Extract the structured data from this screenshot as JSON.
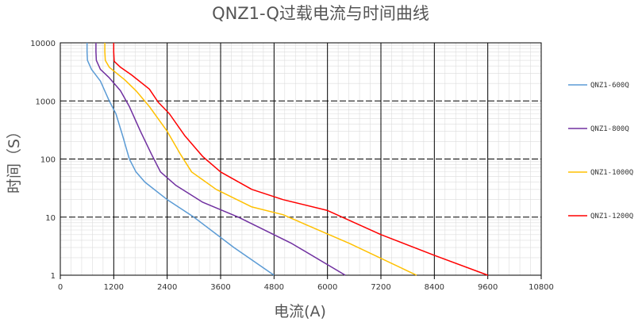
{
  "chart_data": {
    "type": "line",
    "title": "QNZ1-Q过载电流与时间曲线",
    "xlabel": "电流(A)",
    "ylabel": "时间（S）",
    "xlim": [
      0,
      10800
    ],
    "ylim": [
      1,
      10000
    ],
    "yscale": "log",
    "x_ticks": [
      "0",
      "1200",
      "2400",
      "3600",
      "4800",
      "6000",
      "7200",
      "8400",
      "9600",
      "10800"
    ],
    "y_ticks": [
      "1",
      "10",
      "100",
      "1000",
      "10000"
    ],
    "grid": true,
    "legend_position": "right",
    "series": [
      {
        "name": "QNZ1-600Q",
        "color": "#5b9bd5",
        "points": [
          [
            600,
            10000
          ],
          [
            600,
            7000
          ],
          [
            610,
            5000
          ],
          [
            700,
            3500
          ],
          [
            900,
            2200
          ],
          [
            1100,
            1000
          ],
          [
            1250,
            600
          ],
          [
            1400,
            250
          ],
          [
            1550,
            100
          ],
          [
            1700,
            60
          ],
          [
            1900,
            40
          ],
          [
            2400,
            20
          ],
          [
            3000,
            10
          ],
          [
            3900,
            3
          ],
          [
            4800,
            1
          ]
        ]
      },
      {
        "name": "QNZ1-800Q",
        "color": "#7030a0",
        "points": [
          [
            800,
            10000
          ],
          [
            800,
            7000
          ],
          [
            810,
            5000
          ],
          [
            900,
            3500
          ],
          [
            1100,
            2500
          ],
          [
            1350,
            1500
          ],
          [
            1550,
            800
          ],
          [
            1800,
            300
          ],
          [
            2050,
            120
          ],
          [
            2250,
            60
          ],
          [
            2600,
            35
          ],
          [
            3200,
            18
          ],
          [
            4000,
            10
          ],
          [
            5200,
            3.5
          ],
          [
            6400,
            1
          ]
        ]
      },
      {
        "name": "QNZ1-1000Q",
        "color": "#ffc000",
        "points": [
          [
            1000,
            10000
          ],
          [
            1000,
            7000
          ],
          [
            1010,
            5000
          ],
          [
            1100,
            3800
          ],
          [
            1450,
            2300
          ],
          [
            1700,
            1500
          ],
          [
            2000,
            800
          ],
          [
            2400,
            300
          ],
          [
            2700,
            120
          ],
          [
            2950,
            60
          ],
          [
            3500,
            30
          ],
          [
            4300,
            15
          ],
          [
            5000,
            11
          ],
          [
            6500,
            3.5
          ],
          [
            8000,
            1
          ]
        ]
      },
      {
        "name": "QNZ1-1200Q",
        "color": "#ff0000",
        "points": [
          [
            1200,
            10000
          ],
          [
            1200,
            7000
          ],
          [
            1210,
            4800
          ],
          [
            1350,
            3800
          ],
          [
            1600,
            2800
          ],
          [
            2000,
            1600
          ],
          [
            2200,
            950
          ],
          [
            2450,
            600
          ],
          [
            2800,
            250
          ],
          [
            3200,
            110
          ],
          [
            3600,
            60
          ],
          [
            4300,
            30
          ],
          [
            5000,
            20
          ],
          [
            6000,
            13
          ],
          [
            7200,
            5
          ],
          [
            8400,
            2.2
          ],
          [
            9600,
            1
          ]
        ]
      }
    ]
  }
}
